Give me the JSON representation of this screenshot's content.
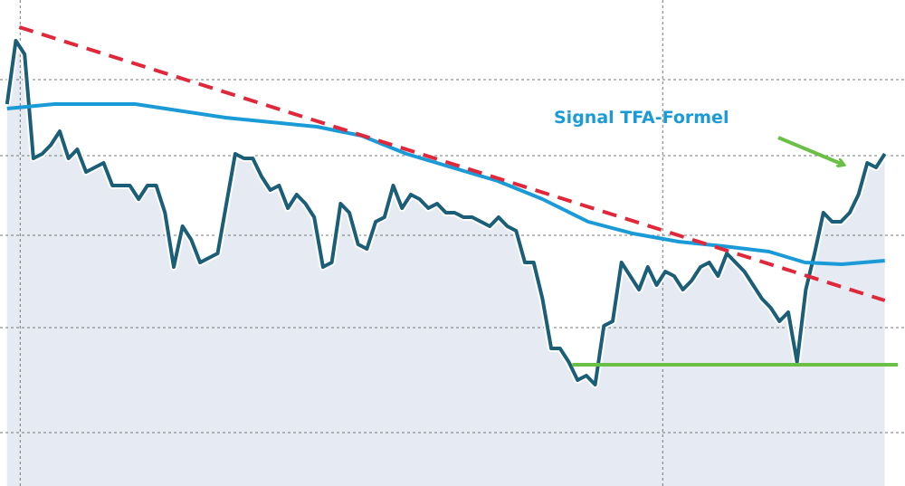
{
  "chart_data": {
    "type": "line",
    "annotations": [
      {
        "text": "Signal TFA-Formel",
        "color": "#1a9bd7"
      }
    ],
    "xlim": [
      -0.8,
      102.3
    ],
    "ylim": [
      0,
      537
    ],
    "xticks": [
      1.5,
      74.7
    ],
    "yticks": [
      59,
      175,
      277,
      365,
      449
    ],
    "grid": true,
    "area_color": "#e5eaf3",
    "series": [
      {
        "color": "#1b5e78",
        "area": true,
        "x": [
          0,
          1,
          2,
          3,
          4,
          5,
          6,
          7,
          8,
          9,
          10,
          11,
          12,
          13,
          14,
          15,
          16,
          17,
          18,
          19,
          20,
          21,
          22,
          23,
          24,
          25,
          26,
          27,
          28,
          29,
          30,
          31,
          32,
          33,
          34,
          35,
          36,
          37,
          38,
          39,
          40,
          41,
          42,
          43,
          44,
          45,
          46,
          47,
          48,
          49,
          50,
          51,
          52,
          53,
          54,
          55,
          56,
          57,
          58,
          59,
          60,
          61,
          62,
          63,
          64,
          65,
          66,
          67,
          68,
          69,
          70,
          71,
          72,
          73,
          74,
          75,
          76,
          77,
          78,
          79,
          80,
          81,
          82,
          83,
          84,
          85,
          86,
          87,
          88,
          89,
          90,
          91,
          92,
          93,
          94,
          95,
          96,
          97,
          98,
          99,
          100
        ],
        "values": [
          422,
          492,
          477,
          362,
          367,
          377,
          392,
          362,
          372,
          347,
          352,
          357,
          332,
          332,
          332,
          317,
          332,
          332,
          302,
          242,
          287,
          272,
          247,
          252,
          257,
          312,
          367,
          362,
          362,
          342,
          327,
          332,
          307,
          322,
          312,
          297,
          242,
          247,
          312,
          302,
          267,
          262,
          292,
          297,
          332,
          307,
          322,
          317,
          307,
          312,
          302,
          302,
          297,
          297,
          292,
          287,
          297,
          287,
          282,
          247,
          247,
          207,
          152,
          152,
          137,
          117,
          122,
          112,
          177,
          182,
          247,
          232,
          217,
          242,
          222,
          237,
          232,
          217,
          227,
          242,
          247,
          232,
          257,
          247,
          237,
          222,
          207,
          197,
          182,
          192,
          137,
          217,
          257,
          302,
          292,
          292,
          302,
          322,
          357,
          352,
          367
        ]
      },
      {
        "color": "#1a9bd7",
        "x": [
          0,
          5.4,
          14.6,
          24.9,
          35.3,
          40.4,
          45.5,
          50.7,
          55.9,
          61,
          66.2,
          71.3,
          76.5,
          81.6,
          86.8,
          90.9,
          95.1,
          100
        ],
        "values": [
          417,
          422,
          422,
          407,
          397,
          387,
          367,
          352,
          337,
          317,
          292,
          279,
          270,
          265,
          259,
          247,
          245,
          249
        ]
      },
      {
        "color": "#e0283a",
        "dashed": true,
        "x": [
          1.4,
          100
        ],
        "values": [
          507,
          205
        ]
      },
      {
        "color": "#6abf45",
        "x": [
          64.4,
          101.5
        ],
        "values": [
          134,
          134
        ]
      }
    ]
  }
}
